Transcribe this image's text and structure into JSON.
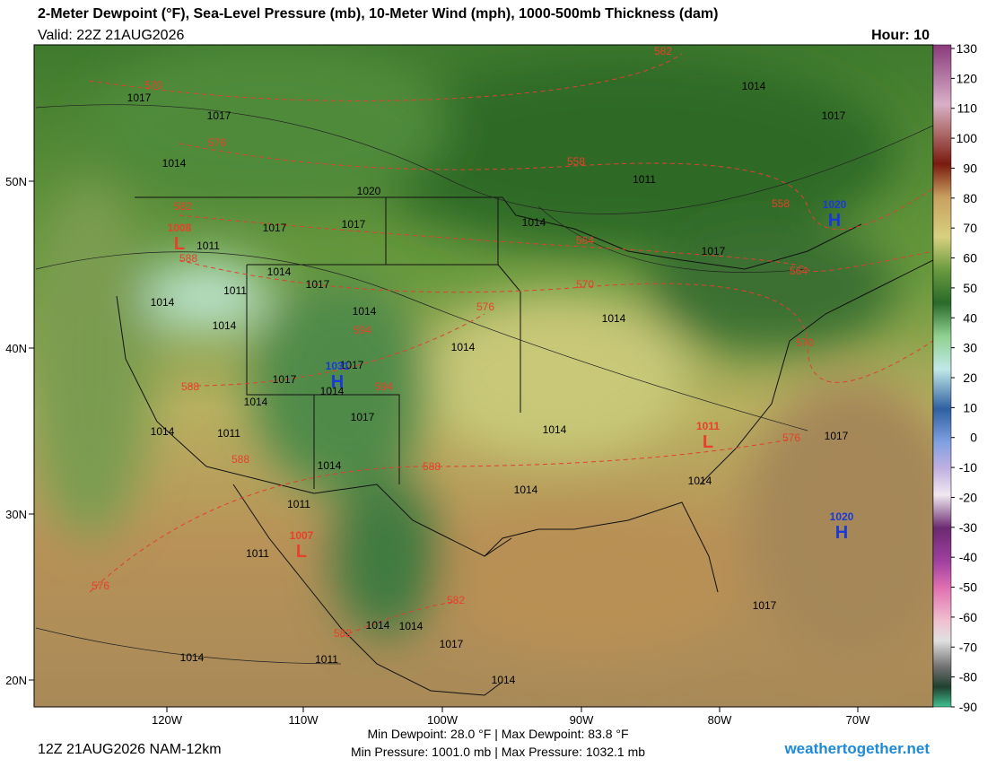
{
  "header": {
    "title": "2-Meter Dewpoint (°F), Sea-Level Pressure (mb), 10-Meter Wind (mph), 1000-500mb Thickness (dam)",
    "valid": "Valid: 22Z 21AUG2026",
    "hour": "Hour: 10"
  },
  "colorbar": {
    "ticks": [
      130,
      120,
      110,
      100,
      90,
      80,
      70,
      60,
      50,
      40,
      30,
      20,
      10,
      0,
      -10,
      -20,
      -30,
      -40,
      -50,
      -60,
      -70,
      -80,
      -90
    ]
  },
  "lat_labels": [
    "50N",
    "40N",
    "30N",
    "20N"
  ],
  "lon_labels": [
    "120W",
    "110W",
    "100W",
    "90W",
    "80W",
    "70W"
  ],
  "thickness_labels": [
    "570",
    "576",
    "582",
    "558",
    "558",
    "564",
    "570",
    "576",
    "582",
    "588",
    "594",
    "594",
    "588",
    "588",
    "588",
    "582",
    "582",
    "576",
    "576",
    "564",
    "570"
  ],
  "isobar_labels": [
    "1017",
    "1017",
    "1014",
    "1020",
    "1017",
    "1017",
    "1011",
    "1011",
    "1014",
    "1014",
    "1017",
    "1014",
    "1014",
    "1014",
    "1014",
    "1014",
    "1011",
    "1014",
    "1017",
    "1017",
    "1014",
    "1011",
    "1014",
    "1017",
    "1014",
    "1014",
    "1014",
    "1014",
    "1017",
    "1011",
    "1011",
    "1017",
    "1014",
    "1011",
    "1014",
    "1014",
    "1017",
    "1014",
    "1017",
    "1014",
    "1017"
  ],
  "pressure_centers": [
    {
      "symbol": "H",
      "value": "1020"
    },
    {
      "symbol": "L",
      "value": "1008"
    },
    {
      "symbol": "H",
      "value": "1031"
    },
    {
      "symbol": "L",
      "value": "1011"
    },
    {
      "symbol": "L",
      "value": "1007"
    },
    {
      "symbol": "H",
      "value": "1020"
    }
  ],
  "footer": {
    "run": "12Z 21AUG2026 NAM-12km",
    "dewpoint": "Min Dewpoint: 28.0 °F | Max Dewpoint: 83.8 °F",
    "pressure": "Min Pressure: 1001.0 mb | Max Pressure: 1032.1 mb",
    "site": "weathertogether.net"
  }
}
